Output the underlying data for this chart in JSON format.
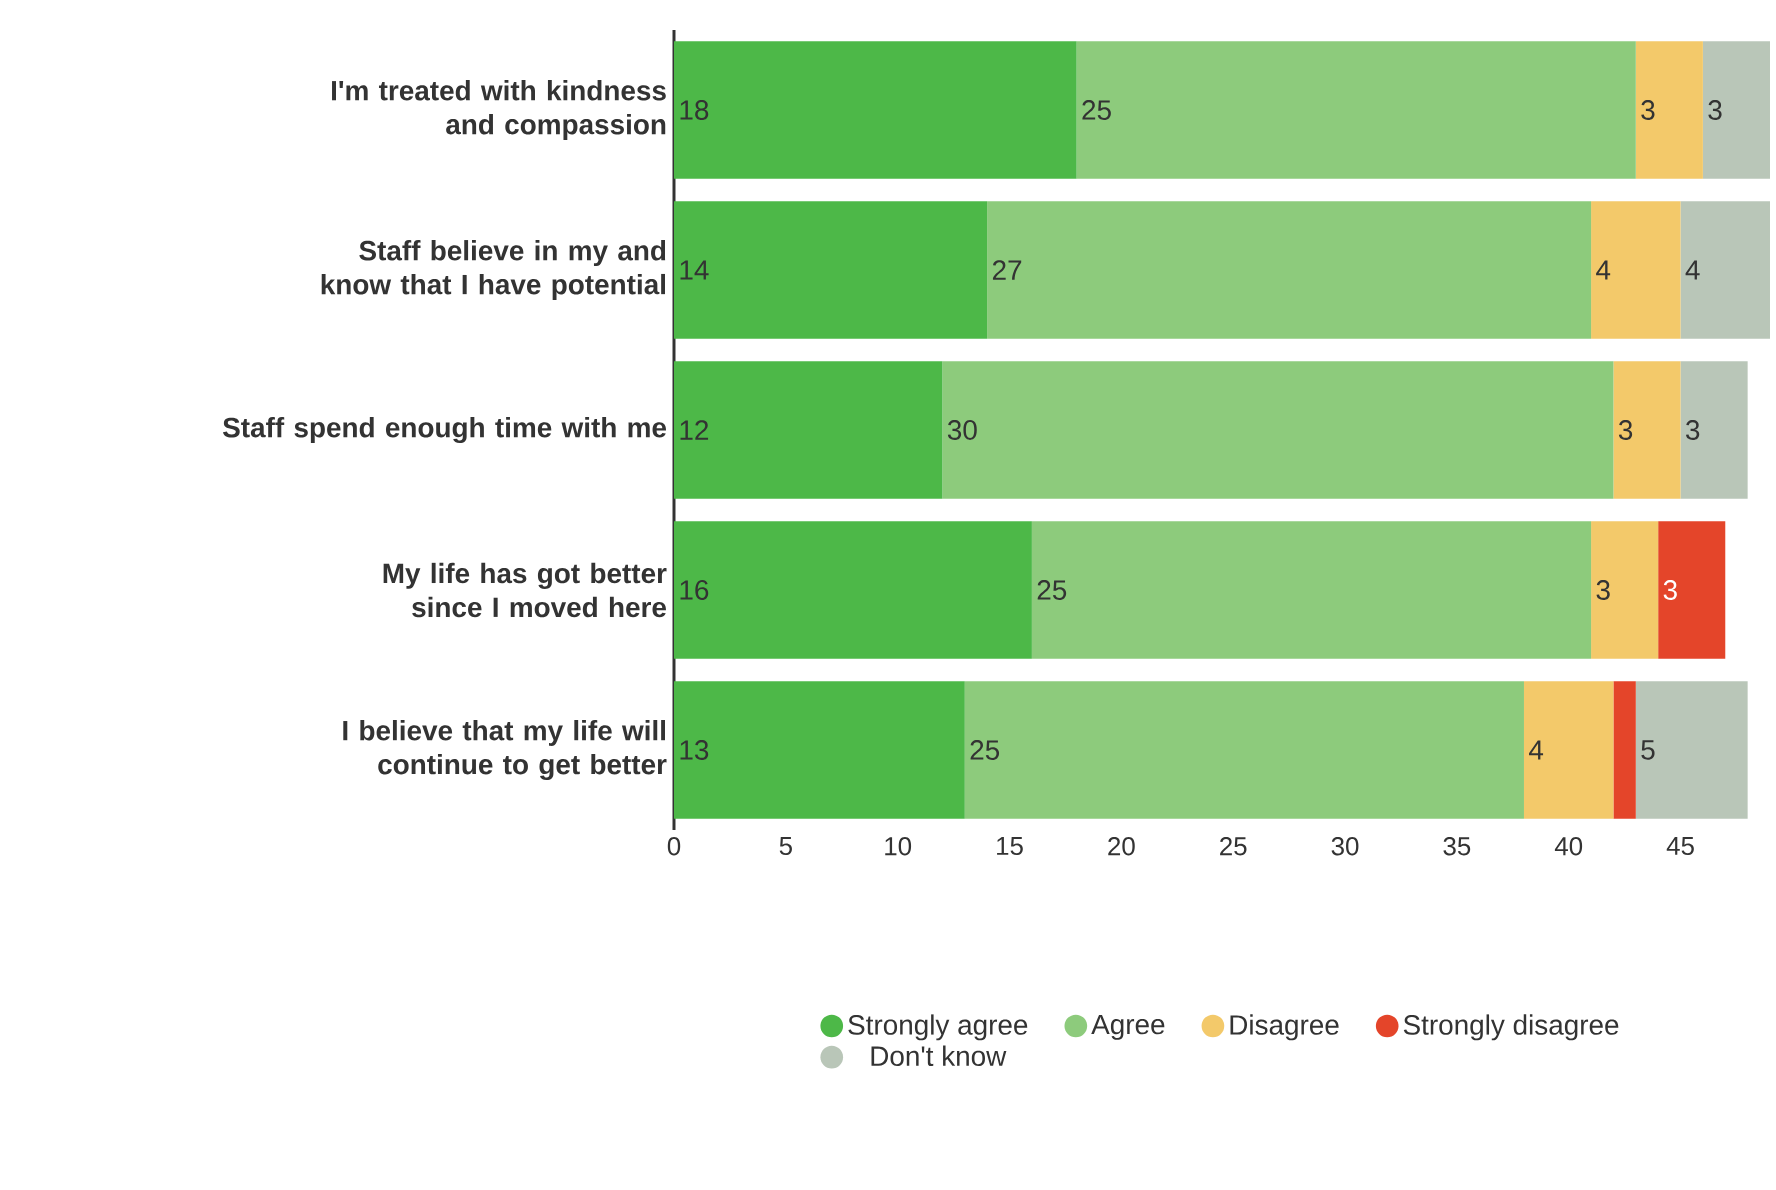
{
  "chart_data": {
    "type": "bar",
    "orientation": "horizontal",
    "stacked": true,
    "categories": [
      "I'm treated with kindness and compassion",
      "Staff believe in my and know that I have potential",
      "Staff spend enough time with me",
      "My life has got better since I moved here",
      "I believe that my life will continue to get better"
    ],
    "series": [
      {
        "name": "Strongly agree",
        "color": "#4db848",
        "values": [
          18,
          14,
          12,
          16,
          13
        ],
        "value_labels": [
          "18",
          "14",
          "12",
          "16",
          "13"
        ]
      },
      {
        "name": "Agree",
        "color": "#8dcb7c",
        "values": [
          25,
          27,
          30,
          25,
          25
        ],
        "value_labels": [
          "25",
          "27",
          "30",
          "25",
          "25"
        ]
      },
      {
        "name": "Disagree",
        "color": "#f3c96a",
        "values": [
          3,
          4,
          3,
          3,
          4
        ],
        "value_labels": [
          "3",
          "4",
          "3",
          "3",
          "4"
        ]
      },
      {
        "name": "Strongly disagree",
        "color": "#e4452a",
        "values": [
          null,
          null,
          null,
          3,
          1
        ],
        "value_labels": [
          null,
          null,
          null,
          "3",
          null
        ]
      },
      {
        "name": "Don't know",
        "color": "#b9c6b8",
        "values": [
          3,
          4,
          3,
          null,
          5
        ],
        "value_labels": [
          "3",
          "4",
          "3",
          null,
          "5"
        ]
      }
    ],
    "xlim": [
      0,
      49
    ],
    "xticks": [
      0,
      5,
      10,
      15,
      20,
      25,
      30,
      35,
      40,
      45
    ],
    "legend": "bottom",
    "marker": "circle"
  }
}
